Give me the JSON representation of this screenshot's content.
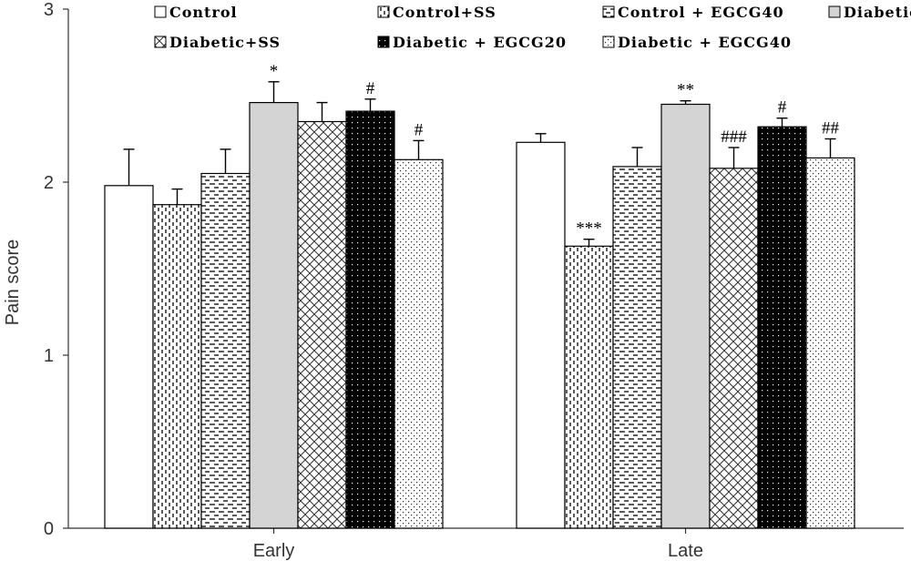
{
  "chart_data": {
    "type": "bar",
    "title": "",
    "xlabel": "",
    "ylabel": "Pain score",
    "ylim": [
      0,
      3
    ],
    "yticks": [
      "0",
      "1",
      "2",
      "3"
    ],
    "grid": false,
    "legend_position": "top",
    "categories": [
      "Early",
      "Late"
    ],
    "series": [
      {
        "name": "Control",
        "pattern": "white",
        "values": [
          1.98,
          2.23
        ],
        "errors": [
          0.21,
          0.05
        ],
        "sig": [
          "",
          ""
        ]
      },
      {
        "name": "Control+SS",
        "pattern": "vdash",
        "values": [
          1.87,
          1.63
        ],
        "errors": [
          0.09,
          0.04
        ],
        "sig": [
          "",
          "***"
        ]
      },
      {
        "name": "Control + EGCG40",
        "pattern": "hdash",
        "values": [
          2.05,
          2.09
        ],
        "errors": [
          0.14,
          0.11
        ],
        "sig": [
          "",
          ""
        ]
      },
      {
        "name": "Diabetic",
        "pattern": "gray",
        "values": [
          2.46,
          2.45
        ],
        "errors": [
          0.12,
          0.02
        ],
        "sig": [
          "*",
          "**"
        ]
      },
      {
        "name": "Diabetic+SS",
        "pattern": "cross",
        "values": [
          2.35,
          2.08
        ],
        "errors": [
          0.11,
          0.12
        ],
        "sig": [
          "",
          "###"
        ]
      },
      {
        "name": "Diabetic + EGCG20",
        "pattern": "black",
        "values": [
          2.41,
          2.32
        ],
        "errors": [
          0.07,
          0.05
        ],
        "sig": [
          "#",
          "#"
        ]
      },
      {
        "name": "Diabetic + EGCG40",
        "pattern": "dots",
        "values": [
          2.13,
          2.14
        ],
        "errors": [
          0.11,
          0.11
        ],
        "sig": [
          "#",
          "##"
        ]
      }
    ]
  }
}
